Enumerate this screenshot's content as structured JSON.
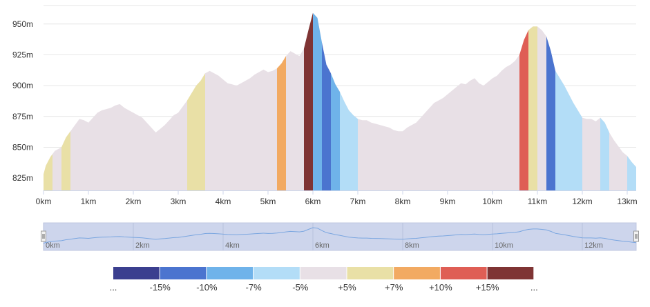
{
  "chart_data": {
    "type": "area",
    "title": "",
    "xlabel": "",
    "ylabel": "",
    "xlim": [
      0,
      13.2
    ],
    "ylim": [
      815,
      965
    ],
    "x_ticks": [
      {
        "value": 0,
        "label": "0km"
      },
      {
        "value": 1,
        "label": "1km"
      },
      {
        "value": 2,
        "label": "2km"
      },
      {
        "value": 3,
        "label": "3km"
      },
      {
        "value": 4,
        "label": "4km"
      },
      {
        "value": 5,
        "label": "5km"
      },
      {
        "value": 6,
        "label": "6km"
      },
      {
        "value": 7,
        "label": "7km"
      },
      {
        "value": 8,
        "label": "8km"
      },
      {
        "value": 9,
        "label": "9km"
      },
      {
        "value": 10,
        "label": "10km"
      },
      {
        "value": 11,
        "label": "11km"
      },
      {
        "value": 12,
        "label": "12km"
      },
      {
        "value": 13,
        "label": "13km"
      }
    ],
    "y_ticks": [
      {
        "value": 825,
        "label": "825m"
      },
      {
        "value": 850,
        "label": "850m"
      },
      {
        "value": 875,
        "label": "875m"
      },
      {
        "value": 900,
        "label": "900m"
      },
      {
        "value": 925,
        "label": "925m"
      },
      {
        "value": 950,
        "label": "950m"
      }
    ],
    "grid": true,
    "series": [
      {
        "name": "Elevation",
        "x": [
          0,
          0.05,
          0.15,
          0.25,
          0.4,
          0.5,
          0.6,
          0.7,
          0.8,
          0.9,
          1.0,
          1.1,
          1.2,
          1.3,
          1.4,
          1.5,
          1.6,
          1.7,
          1.8,
          1.9,
          2.0,
          2.1,
          2.2,
          2.3,
          2.4,
          2.5,
          2.6,
          2.7,
          2.8,
          2.9,
          3.0,
          3.1,
          3.2,
          3.3,
          3.4,
          3.5,
          3.6,
          3.7,
          3.8,
          3.9,
          4.0,
          4.1,
          4.2,
          4.3,
          4.4,
          4.5,
          4.6,
          4.7,
          4.8,
          4.9,
          5.0,
          5.1,
          5.2,
          5.3,
          5.4,
          5.5,
          5.6,
          5.7,
          5.8,
          5.9,
          6.0,
          6.1,
          6.2,
          6.3,
          6.4,
          6.5,
          6.6,
          6.7,
          6.8,
          6.9,
          7.0,
          7.1,
          7.2,
          7.3,
          7.4,
          7.5,
          7.6,
          7.7,
          7.8,
          7.9,
          8.0,
          8.1,
          8.2,
          8.3,
          8.4,
          8.5,
          8.6,
          8.7,
          8.8,
          8.9,
          9.0,
          9.1,
          9.2,
          9.3,
          9.4,
          9.5,
          9.6,
          9.7,
          9.8,
          9.9,
          10.0,
          10.1,
          10.2,
          10.3,
          10.4,
          10.5,
          10.6,
          10.7,
          10.8,
          10.9,
          11.0,
          11.1,
          11.2,
          11.3,
          11.4,
          11.5,
          11.6,
          11.7,
          11.8,
          11.9,
          12.0,
          12.1,
          12.2,
          12.3,
          12.4,
          12.5,
          12.6,
          12.7,
          12.8,
          12.9,
          13.0,
          13.1,
          13.2
        ],
        "values": [
          828,
          835,
          842,
          847,
          850,
          858,
          863,
          868,
          873,
          872,
          870,
          874,
          878,
          880,
          881,
          882,
          884,
          885,
          882,
          880,
          878,
          876,
          874,
          870,
          866,
          862,
          865,
          868,
          872,
          876,
          878,
          883,
          888,
          894,
          900,
          904,
          910,
          912,
          910,
          908,
          905,
          902,
          901,
          900,
          902,
          904,
          906,
          909,
          911,
          913,
          911,
          912,
          914,
          918,
          924,
          928,
          926,
          924,
          930,
          945,
          959,
          955,
          935,
          917,
          910,
          901,
          895,
          887,
          880,
          876,
          873,
          872,
          872,
          870,
          869,
          868,
          867,
          866,
          864,
          863,
          863,
          866,
          868,
          870,
          874,
          878,
          882,
          886,
          888,
          890,
          893,
          896,
          899,
          902,
          901,
          904,
          906,
          902,
          900,
          903,
          906,
          908,
          912,
          915,
          917,
          920,
          925,
          937,
          945,
          948,
          948,
          945,
          940,
          928,
          912,
          906,
          900,
          893,
          886,
          880,
          874,
          873,
          873,
          871,
          874,
          870,
          862,
          856,
          851,
          846,
          843,
          838,
          834
        ]
      }
    ],
    "color_bands": [
      {
        "from": 0.0,
        "to": 0.2,
        "class": "+5"
      },
      {
        "from": 0.4,
        "to": 0.6,
        "class": "+5"
      },
      {
        "from": 3.2,
        "to": 3.6,
        "class": "+5"
      },
      {
        "from": 5.2,
        "to": 5.4,
        "class": "+7"
      },
      {
        "from": 5.8,
        "to": 6.0,
        "class": "+15"
      },
      {
        "from": 6.0,
        "to": 6.2,
        "class": "-7"
      },
      {
        "from": 6.2,
        "to": 6.4,
        "class": "-10"
      },
      {
        "from": 6.4,
        "to": 6.6,
        "class": "-7"
      },
      {
        "from": 6.6,
        "to": 7.0,
        "class": "-5"
      },
      {
        "from": 10.6,
        "to": 10.8,
        "class": "+10"
      },
      {
        "from": 10.8,
        "to": 11.0,
        "class": "+5"
      },
      {
        "from": 11.2,
        "to": 11.4,
        "class": "-10"
      },
      {
        "from": 11.4,
        "to": 12.0,
        "class": "-5"
      },
      {
        "from": 12.4,
        "to": 12.6,
        "class": "-5"
      },
      {
        "from": 13.0,
        "to": 13.2,
        "class": "-5"
      }
    ],
    "navigator_ticks": [
      "0km",
      "2km",
      "4km",
      "6km",
      "8km",
      "10km",
      "12km"
    ],
    "legend": {
      "placement": "bottom",
      "swatches": [
        {
          "class": "<-15",
          "color": "#3b3f8f"
        },
        {
          "class": "-15",
          "color": "#4b74cf"
        },
        {
          "class": "-10",
          "color": "#6fb3ea"
        },
        {
          "class": "-7",
          "color": "#b3ddf7"
        },
        {
          "class": "-5",
          "color": "#e8e0e6"
        },
        {
          "class": "+5",
          "color": "#e9e0a6"
        },
        {
          "class": "+7",
          "color": "#f2aa62"
        },
        {
          "class": "+10",
          "color": "#df5e55"
        },
        {
          "class": "+15",
          "color": "#7f3434"
        }
      ],
      "labels": [
        "...",
        "-15%",
        "-10%",
        "-7%",
        "-5%",
        "+5%",
        "+7%",
        "+10%",
        "+15%",
        "..."
      ]
    },
    "colors": {
      "+5": "#e9e0a6",
      "+7": "#f2aa62",
      "+10": "#df5e55",
      "+15": "#7f3434",
      "-5": "#b3ddf7",
      "-7": "#6fb3ea",
      "-10": "#4b74cf",
      "-15": "#3b3f8f",
      "flat": "#e8e0e6",
      "grid": "#e6e6e6",
      "navigator_fill": "#cdd5ec",
      "navigator_line": "#7aa6e0"
    }
  }
}
